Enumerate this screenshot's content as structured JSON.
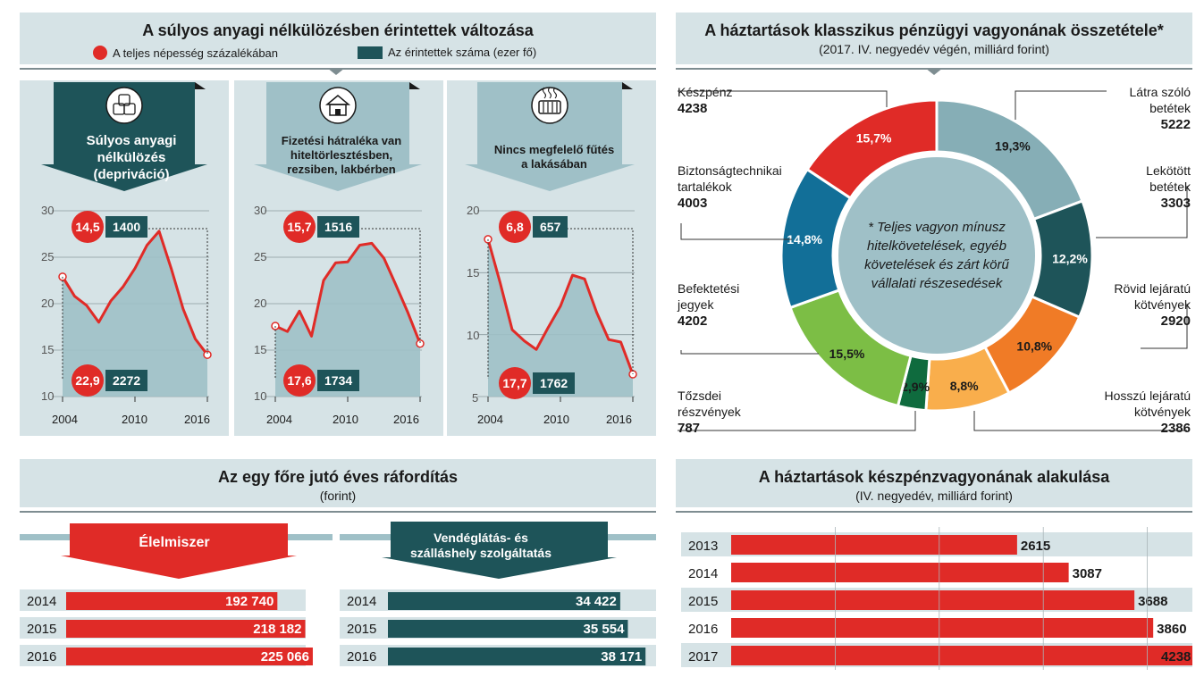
{
  "colors": {
    "red": "#e02b27",
    "dark_teal": "#1e5459",
    "panel": "#d6e3e6"
  },
  "left_header": {
    "title": "A súlyos anyagi nélkülözésben érintettek változása",
    "legend_red": "A teljes népesség százalékában",
    "legend_teal": "Az érintettek száma (ezer fő)"
  },
  "panels": [
    {
      "title": "Súlyos anyagi nélkülözés (depriváció)",
      "icon": "coins-icon",
      "top_pct": "14,5",
      "top_num": "1400",
      "bot_pct": "22,9",
      "bot_num": "2272",
      "yticks": [
        "30",
        "25",
        "20",
        "15",
        "10"
      ],
      "xticks": [
        "2004",
        "2010",
        "2016"
      ]
    },
    {
      "title": "Fizetési hátraléka van hiteltörlesztésben, rezsiben, lakbérben",
      "icon": "house-icon",
      "top_pct": "15,7",
      "top_num": "1516",
      "bot_pct": "17,6",
      "bot_num": "1734",
      "yticks": [
        "30",
        "25",
        "20",
        "15",
        "10"
      ],
      "xticks": [
        "2004",
        "2010",
        "2016"
      ]
    },
    {
      "title": "Nincs megfelelő fűtés a lakásában",
      "icon": "radiator-icon",
      "top_pct": "6,8",
      "top_num": "657",
      "bot_pct": "17,7",
      "bot_num": "1762",
      "yticks": [
        "20",
        "15",
        "10",
        "5"
      ],
      "xticks": [
        "2004",
        "2010",
        "2016"
      ]
    }
  ],
  "chart_data": [
    {
      "type": "line",
      "title": "Súlyos anyagi nélkülözés (depriváció)",
      "ylim": [
        10,
        30
      ],
      "x": [
        2004,
        2005,
        2006,
        2007,
        2008,
        2009,
        2010,
        2011,
        2012,
        2013,
        2014,
        2015,
        2016
      ],
      "values": [
        22.9,
        20.8,
        19.8,
        18.0,
        20.3,
        21.8,
        23.8,
        26.3,
        27.8,
        23.8,
        19.4,
        16.2,
        14.5
      ]
    },
    {
      "type": "line",
      "title": "Fizetési hátraléka van hiteltörlesztésben, rezsiben, lakbérben",
      "ylim": [
        10,
        30
      ],
      "x": [
        2004,
        2005,
        2006,
        2007,
        2008,
        2009,
        2010,
        2011,
        2012,
        2013,
        2014,
        2015,
        2016
      ],
      "values": [
        17.6,
        17.0,
        19.2,
        16.5,
        22.5,
        24.4,
        24.5,
        26.3,
        26.5,
        24.9,
        22.0,
        19.0,
        15.7
      ]
    },
    {
      "type": "line",
      "title": "Nincs megfelelő fűtés a lakásában",
      "ylim": [
        5,
        20
      ],
      "x": [
        2004,
        2005,
        2006,
        2007,
        2008,
        2009,
        2010,
        2011,
        2012,
        2013,
        2014,
        2015,
        2016
      ],
      "values": [
        17.7,
        14.2,
        10.4,
        9.5,
        8.8,
        10.6,
        12.3,
        14.8,
        14.5,
        11.8,
        9.6,
        9.4,
        6.8
      ]
    },
    {
      "type": "pie",
      "title": "A háztartások klasszikus pénzügyi vagyonának összetétele*",
      "subtitle": "(2017. IV. negyedév végén, milliárd forint)",
      "slices": [
        {
          "name": "Látra szóló betétek",
          "value": 5222,
          "pct": "19,3%",
          "color": "#86aeb6"
        },
        {
          "name": "Lekötött betétek",
          "value": 3303,
          "pct": "12,2%",
          "color": "#1e5459"
        },
        {
          "name": "Rövid lejáratú kötvények",
          "value": 2920,
          "pct": "10,8%",
          "color": "#f07b26"
        },
        {
          "name": "Hosszú lejáratú kötvények",
          "value": 2386,
          "pct": "8,8%",
          "color": "#f9ae4c"
        },
        {
          "name": "Tőzsdei részvények",
          "value": 787,
          "pct": "2,9%",
          "color": "#0f6b3e"
        },
        {
          "name": "Befektetési jegyek",
          "value": 4202,
          "pct": "15,5%",
          "color": "#7cbe45"
        },
        {
          "name": "Biztonságtechnikai tartalékok",
          "value": 4003,
          "pct": "14,8%",
          "color": "#126f98"
        },
        {
          "name": "Készpénz",
          "value": 4238,
          "pct": "15,7%",
          "color": "#e02b27"
        }
      ]
    },
    {
      "type": "bar",
      "title": "Élelmiszer",
      "categories": [
        "2014",
        "2015",
        "2016"
      ],
      "values": [
        192740,
        218182,
        225066
      ],
      "labels": [
        "192 740",
        "218 182",
        "225 066"
      ]
    },
    {
      "type": "bar",
      "title": "Vendéglátás- és szálláshely szolgáltatás",
      "categories": [
        "2014",
        "2015",
        "2016"
      ],
      "values": [
        34422,
        35554,
        38171
      ],
      "labels": [
        "34 422",
        "35 554",
        "38 171"
      ]
    },
    {
      "type": "bar",
      "title": "A háztartások készpénzvagyonának alakulása",
      "subtitle": "(IV. negyedév, milliárd forint)",
      "categories": [
        "2013",
        "2014",
        "2015",
        "2016",
        "2017"
      ],
      "values": [
        2615,
        3087,
        3688,
        3860,
        4238
      ]
    }
  ],
  "right_header": {
    "title": "A háztartások klasszikus pénzügyi vagyonának összetétele*",
    "subtitle": "(2017. IV. negyedév végén, milliárd forint)"
  },
  "donut_center": "* Teljes vagyon mínusz hitelkövetelések, egyéb követelések és zárt körű vállalati részesedések",
  "pie_labels": {
    "keszpenz": {
      "name": "Készpénz",
      "value": "4238"
    },
    "latra": {
      "name": "Látra szóló betétek",
      "value": "5222"
    },
    "lekotott": {
      "name": "Lekötött betétek",
      "value": "3303"
    },
    "biztons": {
      "name": "Biztonságtechnikai tartalékok",
      "value": "4003"
    },
    "rovid": {
      "name": "Rövid lejáratú kötvények",
      "value": "2920"
    },
    "befekt": {
      "name": "Befektetési jegyek",
      "value": "4202"
    },
    "hosszu": {
      "name": "Hosszú lejáratú kötvények",
      "value": "2386"
    },
    "tozsdei": {
      "name": "Tőzsdei részvények",
      "value": "787"
    }
  },
  "bottom_left": {
    "title": "Az egy főre jutó éves ráfordítás",
    "subtitle": "(forint)",
    "food_label": "Élelmiszer",
    "hosp_label": "Vendéglátás- és szálláshely szolgáltatás"
  },
  "bottom_right": {
    "title": "A háztartások készpénzvagyonának alakulása",
    "subtitle": "(IV. negyedév, milliárd forint)"
  }
}
